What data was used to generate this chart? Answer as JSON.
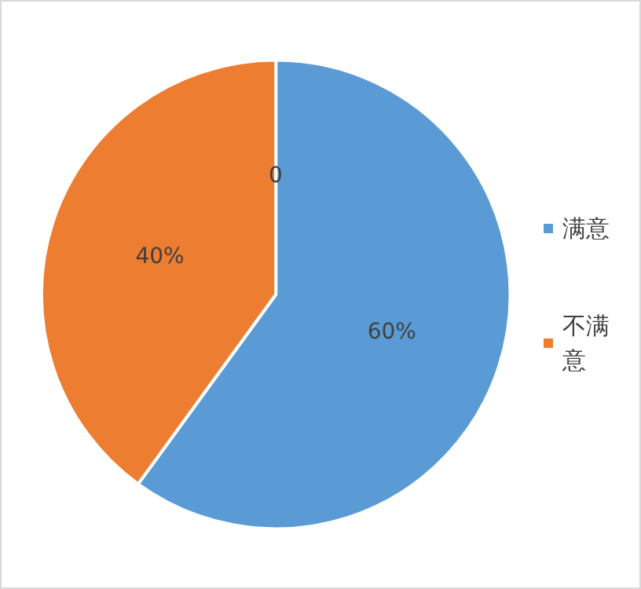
{
  "chart_data": {
    "type": "pie",
    "categories": [
      "满意",
      "不满意"
    ],
    "values": [
      60,
      40
    ],
    "colors": [
      "#5b9bd5",
      "#ed7d31"
    ],
    "value_labels": [
      "60%",
      "40%"
    ],
    "legend": "right",
    "annotations": [
      "0"
    ]
  }
}
